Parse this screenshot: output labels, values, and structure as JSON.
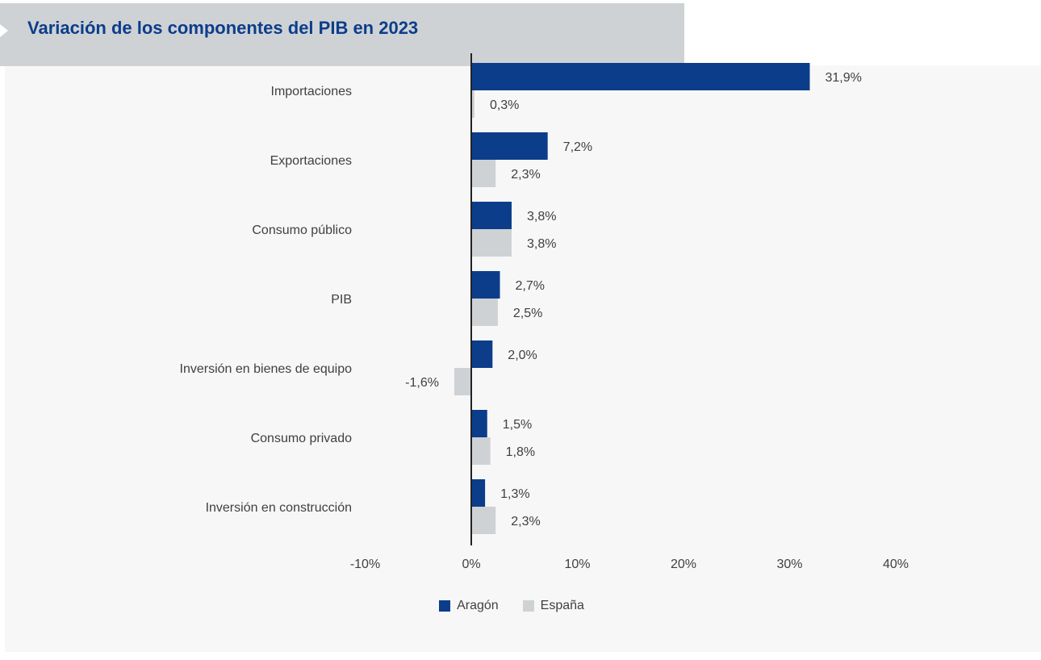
{
  "title": "Variación de los componentes del PIB en 2023",
  "colors": {
    "aragon": "#0c3d8a",
    "espana": "#ced2d5",
    "axis": "#222222",
    "text": "#404040"
  },
  "chart_data": {
    "type": "bar",
    "orientation": "horizontal",
    "title": "Variación de los componentes del PIB en 2023",
    "categories": [
      "Importaciones",
      "Exportaciones",
      "Consumo público",
      "PIB",
      "Inversión en bienes de equipo",
      "Consumo privado",
      "Inversión en construcción"
    ],
    "series": [
      {
        "name": "Aragón",
        "values": [
          31.9,
          7.2,
          3.8,
          2.7,
          2.0,
          1.5,
          1.3
        ],
        "labels": [
          "31,9%",
          "7,2%",
          "3,8%",
          "2,7%",
          "2,0%",
          "1,5%",
          "1,3%"
        ]
      },
      {
        "name": "España",
        "values": [
          0.3,
          2.3,
          3.8,
          2.5,
          -1.6,
          1.8,
          2.3
        ],
        "labels": [
          "0,3%",
          "2,3%",
          "3,8%",
          "2,5%",
          "-1,6%",
          "1,8%",
          "2,3%"
        ]
      }
    ],
    "xlim": [
      -10,
      40
    ],
    "xticks": [
      -10,
      0,
      10,
      20,
      30,
      40
    ],
    "xtick_labels": [
      "-10%",
      "0%",
      "10%",
      "20%",
      "30%",
      "40%"
    ],
    "grid": false,
    "legend": "bottom-center"
  }
}
